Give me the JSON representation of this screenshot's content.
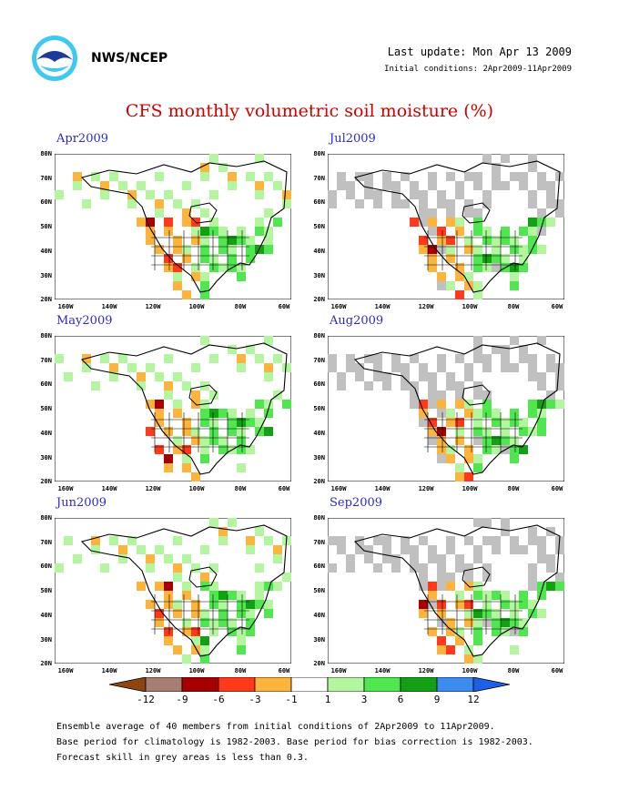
{
  "header": {
    "org": "NWS/NCEP",
    "last_update": "Last update: Mon Apr 13 2009",
    "initial_conditions": "Initial conditions: 2Apr2009-11Apr2009",
    "title": "CFS monthly volumetric soil moisture (%)"
  },
  "panels": [
    {
      "label": "Apr2009"
    },
    {
      "label": "Jul2009"
    },
    {
      "label": "May2009"
    },
    {
      "label": "Aug2009"
    },
    {
      "label": "Jun2009"
    },
    {
      "label": "Sep2009"
    }
  ],
  "axes": {
    "y_ticks": [
      "80N",
      "70N",
      "60N",
      "50N",
      "40N",
      "30N",
      "20N"
    ],
    "x_ticks": [
      "160W",
      "140W",
      "120W",
      "100W",
      "80W",
      "60W"
    ]
  },
  "colorbar": {
    "levels": [
      "-12",
      "-9",
      "-6",
      "-3",
      "-1",
      "1",
      "3",
      "6",
      "9",
      "12"
    ],
    "colors": [
      "#8b4513",
      "#a87d74",
      "#a80000",
      "#ff3a1a",
      "#fcb43c",
      "#ffffff",
      "#b4f5a0",
      "#50e650",
      "#14a014",
      "#3c8cf0",
      "#1f5fe6"
    ]
  },
  "notes": {
    "line1": "Ensemble average of 40 members from initial conditions of 2Apr2009 to 11Apr2009.",
    "line2": "Base period for climatology is 1982-2003. Base period for bias correction is 1982-2003.",
    "line3": "Forecast skill in grey areas is less than 0.3."
  },
  "chart_data": {
    "type": "heatmap",
    "title": "CFS monthly volumetric soil moisture (%)",
    "panels": [
      "Apr2009",
      "Jul2009",
      "May2009",
      "Aug2009",
      "Jun2009",
      "Sep2009"
    ],
    "xlim": [
      "160W",
      "60W"
    ],
    "ylim": [
      "20N",
      "80N"
    ],
    "legend_levels": [
      -12,
      -9,
      -6,
      -3,
      -1,
      1,
      3,
      6,
      9,
      12
    ],
    "grey_meaning": "Forecast skill in grey areas is less than 0.3."
  }
}
